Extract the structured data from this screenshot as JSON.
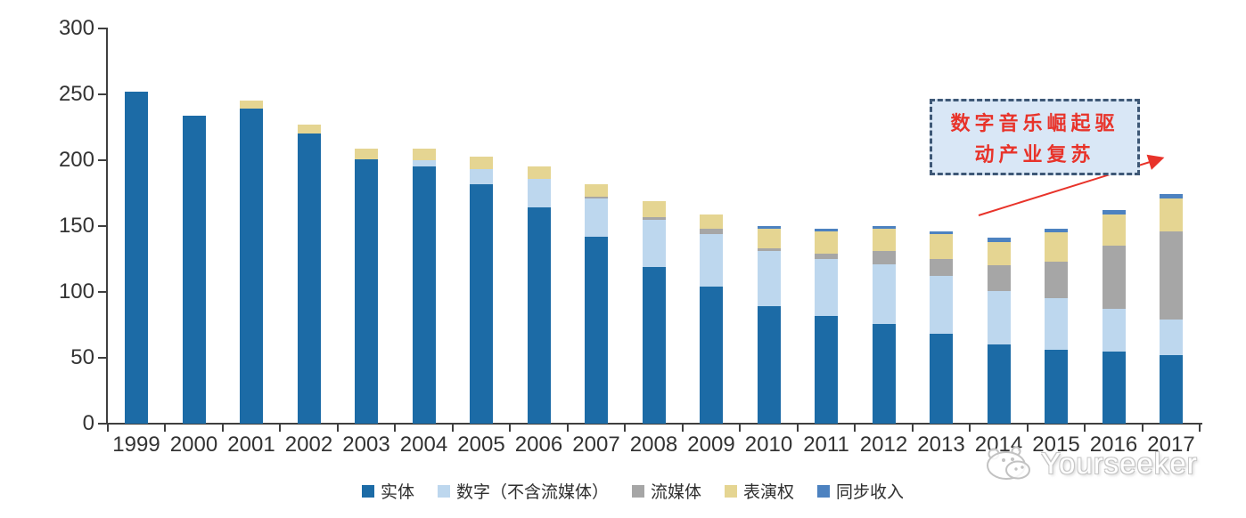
{
  "chart_data": {
    "type": "bar",
    "stacked": true,
    "title": "",
    "xlabel": "",
    "ylabel": "",
    "ylim": [
      0,
      300
    ],
    "yticks": [
      0,
      50,
      100,
      150,
      200,
      250,
      300
    ],
    "grid": false,
    "legend_position": "bottom",
    "categories": [
      "1999",
      "2000",
      "2001",
      "2002",
      "2003",
      "2004",
      "2005",
      "2006",
      "2007",
      "2008",
      "2009",
      "2010",
      "2011",
      "2012",
      "2013",
      "2014",
      "2015",
      "2016",
      "2017"
    ],
    "series": [
      {
        "name": "实体",
        "color": "#1c6ba6",
        "values": [
          252,
          234,
          239,
          220,
          201,
          195,
          182,
          164,
          142,
          119,
          104,
          89,
          82,
          76,
          68,
          60,
          56,
          55,
          52
        ]
      },
      {
        "name": "数字（不含流媒体）",
        "color": "#bdd7ee",
        "values": [
          0,
          0,
          0,
          0,
          0,
          5,
          11,
          22,
          29,
          36,
          40,
          42,
          43,
          45,
          44,
          41,
          39,
          32,
          27
        ]
      },
      {
        "name": "流媒体",
        "color": "#a6a6a6",
        "values": [
          0,
          0,
          0,
          0,
          0,
          0,
          0,
          0,
          1,
          2,
          4,
          2,
          4,
          10,
          13,
          19,
          28,
          48,
          67
        ]
      },
      {
        "name": "表演权",
        "color": "#e5d592",
        "values": [
          0,
          0,
          6,
          7,
          8,
          9,
          10,
          9,
          10,
          12,
          11,
          15,
          17,
          17,
          19,
          18,
          22,
          24,
          25
        ]
      },
      {
        "name": "同步收入",
        "color": "#4d82c0",
        "values": [
          0,
          0,
          0,
          0,
          0,
          0,
          0,
          0,
          0,
          0,
          0,
          2,
          2,
          2,
          2,
          3,
          3,
          3,
          3
        ]
      }
    ]
  },
  "annotation": {
    "line1": "数字音乐崛起驱",
    "line2": "动产业复苏",
    "text_color": "#e8332a",
    "box_fill": "#d9e7f6",
    "box_border": "#3e5876",
    "arrow_color": "#e8332a"
  },
  "watermark": {
    "text": "Yourseeker"
  }
}
